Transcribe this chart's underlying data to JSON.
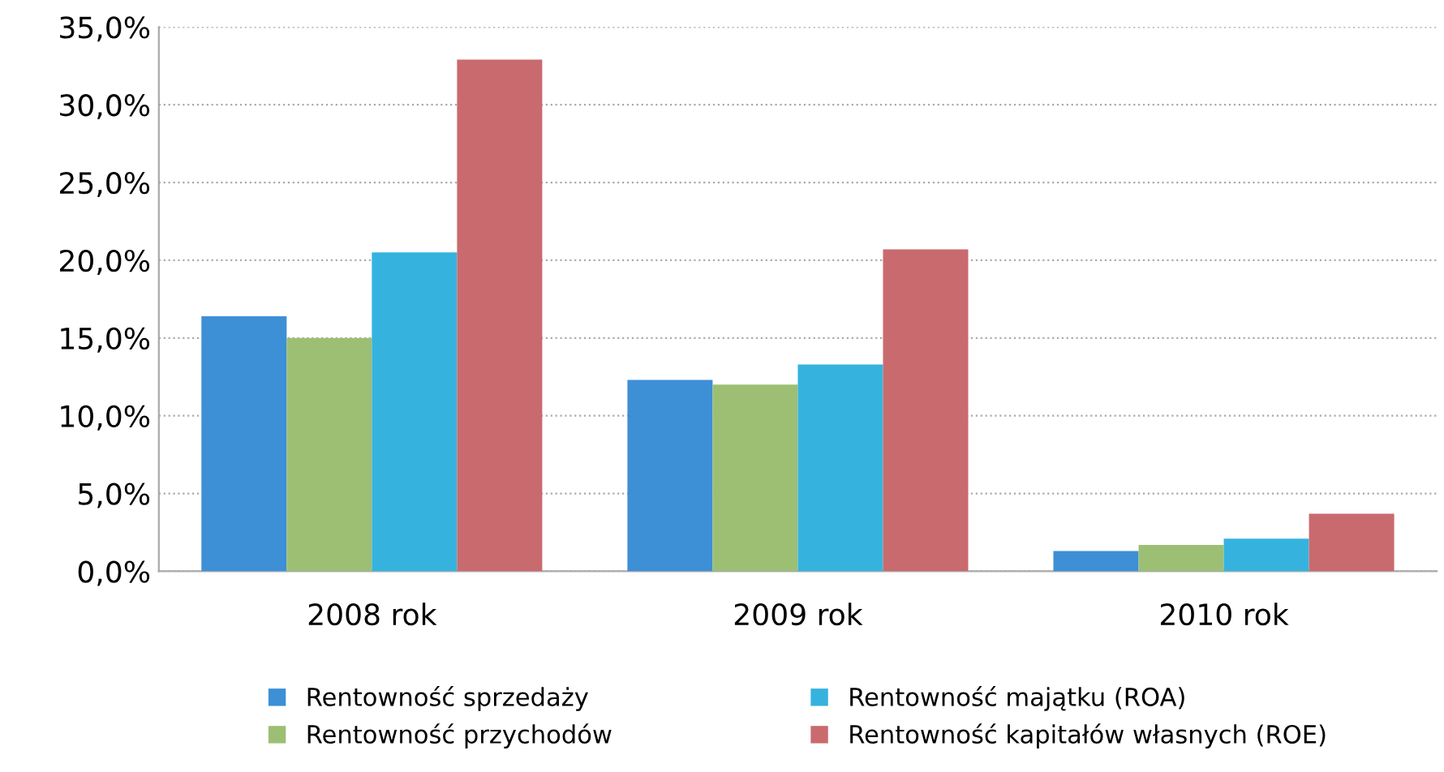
{
  "chart_data": {
    "type": "bar",
    "categories": [
      "2008 rok",
      "2009 rok",
      "2010 rok"
    ],
    "series": [
      {
        "name": "Rentowność sprzedaży",
        "color": "#3d8fd6",
        "values": [
          16.4,
          12.3,
          1.3
        ]
      },
      {
        "name": "Rentowność przychodów",
        "color": "#9cbf74",
        "values": [
          15.0,
          12.0,
          1.7
        ]
      },
      {
        "name": "Rentowność majątku (ROA)",
        "color": "#35b3de",
        "values": [
          20.5,
          13.3,
          2.1
        ]
      },
      {
        "name": "Rentowność kapitałów własnych (ROE)",
        "color": "#c96a6e",
        "values": [
          32.9,
          20.7,
          3.7
        ]
      }
    ],
    "ylim": [
      0,
      35
    ],
    "yticks": [
      {
        "value": 0,
        "label": "0,0%"
      },
      {
        "value": 5,
        "label": "5,0%"
      },
      {
        "value": 10,
        "label": "10,0%"
      },
      {
        "value": 15,
        "label": "15,0%"
      },
      {
        "value": 20,
        "label": "20,0%"
      },
      {
        "value": 25,
        "label": "25,0%"
      },
      {
        "value": 30,
        "label": "30,0%"
      },
      {
        "value": 35,
        "label": "35,0%"
      }
    ],
    "grid": "y",
    "legend": "bottom"
  }
}
